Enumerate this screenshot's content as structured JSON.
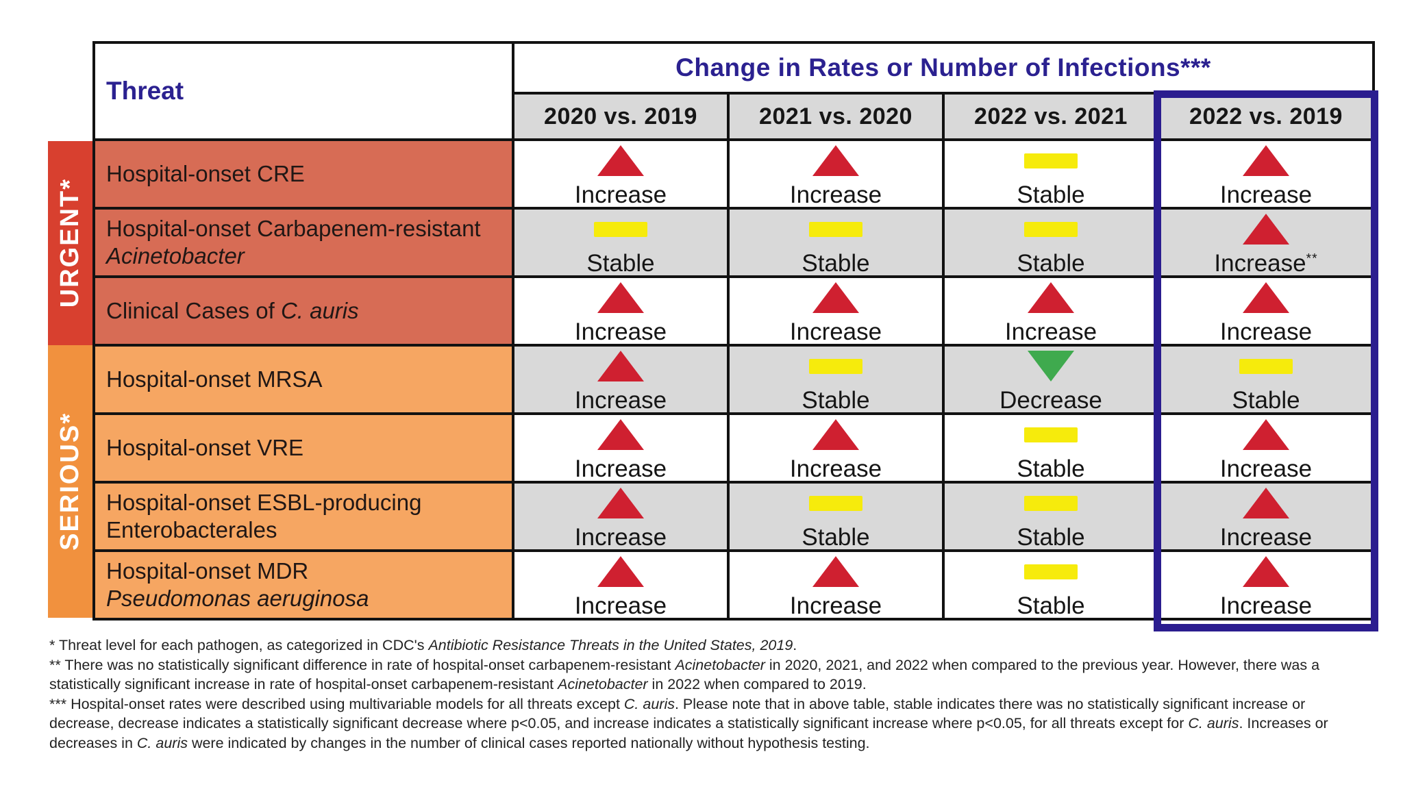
{
  "table": {
    "threat_header": "Threat",
    "main_header": "Change in Rates or Number of Infections***",
    "column_headers": [
      "2020 vs. 2019",
      "2021 vs. 2020",
      "2022 vs. 2021",
      "2022 vs. 2019"
    ],
    "highlighted_column": "2022 vs. 2019"
  },
  "categories": [
    {
      "label": "URGENT*",
      "level": "urgent"
    },
    {
      "label": "SERIOUS*",
      "level": "serious"
    }
  ],
  "rows": [
    {
      "level": "urgent",
      "label_segments": [
        {
          "t": "Hospital-onset CRE"
        }
      ],
      "cells": [
        {
          "status": "Increase",
          "icon": "up-triangle"
        },
        {
          "status": "Increase",
          "icon": "up-triangle"
        },
        {
          "status": "Stable",
          "icon": "flat-bar"
        },
        {
          "status": "Increase",
          "icon": "up-triangle"
        }
      ]
    },
    {
      "level": "urgent",
      "label_segments": [
        {
          "t": "Hospital-onset Carbapenem-resistant "
        },
        {
          "t": "Acinetobacter",
          "i": true
        }
      ],
      "cells": [
        {
          "status": "Stable",
          "icon": "flat-bar"
        },
        {
          "status": "Stable",
          "icon": "flat-bar"
        },
        {
          "status": "Stable",
          "icon": "flat-bar"
        },
        {
          "status": "Increase",
          "icon": "up-triangle",
          "sup": "**"
        }
      ]
    },
    {
      "level": "urgent",
      "label_segments": [
        {
          "t": "Clinical Cases of "
        },
        {
          "t": "C. auris",
          "i": true
        }
      ],
      "cells": [
        {
          "status": "Increase",
          "icon": "up-triangle"
        },
        {
          "status": "Increase",
          "icon": "up-triangle"
        },
        {
          "status": "Increase",
          "icon": "up-triangle"
        },
        {
          "status": "Increase",
          "icon": "up-triangle"
        }
      ]
    },
    {
      "level": "serious",
      "label_segments": [
        {
          "t": "Hospital-onset MRSA"
        }
      ],
      "cells": [
        {
          "status": "Increase",
          "icon": "up-triangle"
        },
        {
          "status": "Stable",
          "icon": "flat-bar"
        },
        {
          "status": "Decrease",
          "icon": "down-triangle"
        },
        {
          "status": "Stable",
          "icon": "flat-bar"
        }
      ]
    },
    {
      "level": "serious",
      "label_segments": [
        {
          "t": "Hospital-onset VRE"
        }
      ],
      "cells": [
        {
          "status": "Increase",
          "icon": "up-triangle"
        },
        {
          "status": "Increase",
          "icon": "up-triangle"
        },
        {
          "status": "Stable",
          "icon": "flat-bar"
        },
        {
          "status": "Increase",
          "icon": "up-triangle"
        }
      ]
    },
    {
      "level": "serious",
      "label_segments": [
        {
          "t": "Hospital-onset ESBL-producing Enterobacterales"
        }
      ],
      "cells": [
        {
          "status": "Increase",
          "icon": "up-triangle"
        },
        {
          "status": "Stable",
          "icon": "flat-bar"
        },
        {
          "status": "Stable",
          "icon": "flat-bar"
        },
        {
          "status": "Increase",
          "icon": "up-triangle"
        }
      ]
    },
    {
      "level": "serious",
      "label_segments": [
        {
          "t": "Hospital-onset MDR "
        },
        {
          "t": "Pseudomonas aeruginosa",
          "i": true
        }
      ],
      "cells": [
        {
          "status": "Increase",
          "icon": "up-triangle"
        },
        {
          "status": "Increase",
          "icon": "up-triangle"
        },
        {
          "status": "Stable",
          "icon": "flat-bar"
        },
        {
          "status": "Increase",
          "icon": "up-triangle"
        }
      ]
    }
  ],
  "footnotes": [
    [
      {
        "t": "* Threat level for each pathogen, as categorized in CDC's "
      },
      {
        "t": "Antibiotic Resistance Threats in the United States, 2019",
        "i": true
      },
      {
        "t": "."
      }
    ],
    [
      {
        "t": "** There was no statistically significant difference in rate of hospital-onset carbapenem-resistant "
      },
      {
        "t": "Acinetobacter",
        "i": true
      },
      {
        "t": " in 2020, 2021, and 2022 when compared to the previous year. However, there was a statistically significant increase in rate of hospital-onset carbapenem-resistant "
      },
      {
        "t": "Acinetobacter",
        "i": true
      },
      {
        "t": " in 2022 when compared to 2019."
      }
    ],
    [
      {
        "t": "*** Hospital-onset rates were described using multivariable models for all threats except "
      },
      {
        "t": "C. auris",
        "i": true
      },
      {
        "t": ". Please note that in above table, stable indicates there was no statistically significant increase or decrease, decrease indicates a statistically significant decrease where p<0.05, and increase indicates a statistically significant increase where p<0.05, for all threats except for "
      },
      {
        "t": "C. auris",
        "i": true
      },
      {
        "t": ". Increases or decreases in "
      },
      {
        "t": "C. auris",
        "i": true
      },
      {
        "t": " were indicated by changes in the number of clinical cases reported nationally without hypothesis testing."
      }
    ]
  ],
  "colors": {
    "navy_text": "#2b2190",
    "highlight_border": "#2b1d8f",
    "urgent_band": "#d8402f",
    "urgent_cell": "#d76c55",
    "serious_band": "#f1913e",
    "serious_cell": "#f6a662",
    "gray_row": "#d9d9d9",
    "increase_triangle": "#cf2030",
    "decrease_triangle": "#3faa4e",
    "stable_bar": "#f6eb0c",
    "gridline": "#121212"
  },
  "icon_legend": {
    "up-triangle": "red triangle pointing up = Increase",
    "flat-bar": "yellow horizontal bar = Stable",
    "down-triangle": "green triangle pointing down = Decrease"
  },
  "chart_data": {
    "type": "table",
    "title": "Change in Rates or Number of Infections***",
    "columns": [
      "2020 vs. 2019",
      "2021 vs. 2020",
      "2022 vs. 2021",
      "2022 vs. 2019"
    ],
    "rows": [
      {
        "threat": "Hospital-onset CRE",
        "threat_level": "Urgent",
        "values": [
          "Increase",
          "Increase",
          "Stable",
          "Increase"
        ]
      },
      {
        "threat": "Hospital-onset Carbapenem-resistant Acinetobacter",
        "threat_level": "Urgent",
        "values": [
          "Stable",
          "Stable",
          "Stable",
          "Increase**"
        ]
      },
      {
        "threat": "Clinical Cases of C. auris",
        "threat_level": "Urgent",
        "values": [
          "Increase",
          "Increase",
          "Increase",
          "Increase"
        ]
      },
      {
        "threat": "Hospital-onset MRSA",
        "threat_level": "Serious",
        "values": [
          "Increase",
          "Stable",
          "Decrease",
          "Stable"
        ]
      },
      {
        "threat": "Hospital-onset VRE",
        "threat_level": "Serious",
        "values": [
          "Increase",
          "Increase",
          "Stable",
          "Increase"
        ]
      },
      {
        "threat": "Hospital-onset ESBL-producing Enterobacterales",
        "threat_level": "Serious",
        "values": [
          "Increase",
          "Stable",
          "Stable",
          "Increase"
        ]
      },
      {
        "threat": "Hospital-onset MDR Pseudomonas aeruginosa",
        "threat_level": "Serious",
        "values": [
          "Increase",
          "Increase",
          "Stable",
          "Increase"
        ]
      }
    ],
    "legend": {
      "Increase": "red up-triangle",
      "Stable": "yellow bar",
      "Decrease": "green down-triangle"
    },
    "highlighted_column": "2022 vs. 2019"
  }
}
